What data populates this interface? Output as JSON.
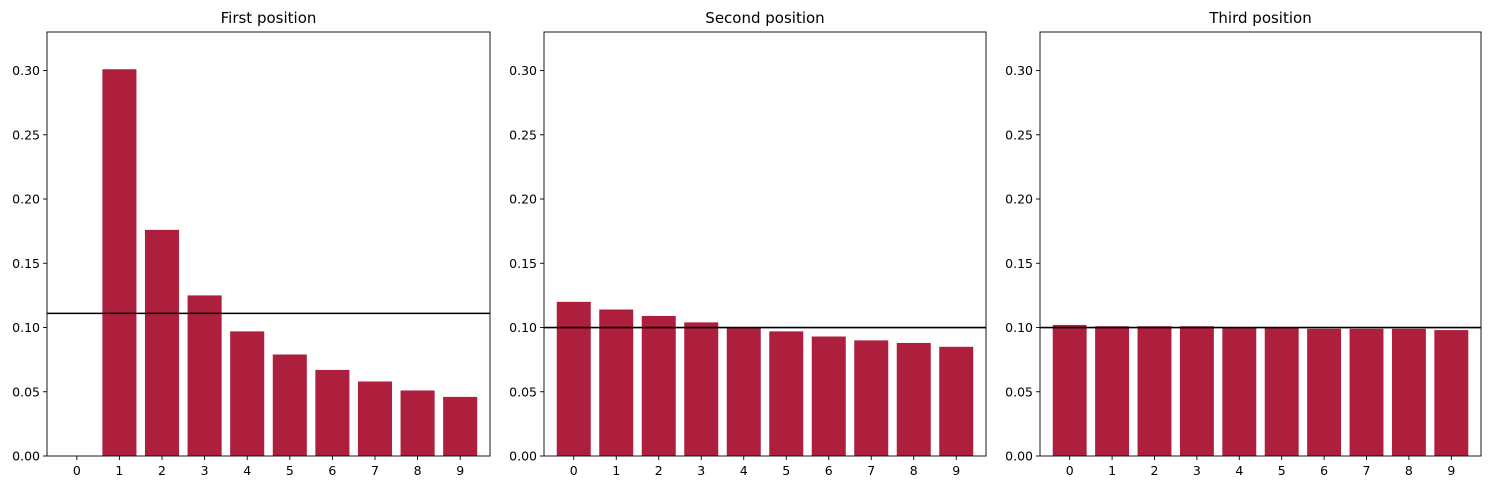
{
  "chart_data": [
    {
      "type": "bar",
      "title": "First position",
      "xlabel": "",
      "ylabel": "",
      "categories": [
        "0",
        "1",
        "2",
        "3",
        "4",
        "5",
        "6",
        "7",
        "8",
        "9"
      ],
      "values": [
        0.0,
        0.301,
        0.176,
        0.125,
        0.097,
        0.079,
        0.067,
        0.058,
        0.051,
        0.046
      ],
      "reference_line": 0.111,
      "ylim": [
        0,
        0.33
      ],
      "yticks": [
        "0.00",
        "0.05",
        "0.10",
        "0.15",
        "0.20",
        "0.25",
        "0.30"
      ],
      "grid": false,
      "bar_color": "#ae1f3e",
      "reference_line_color": "#000000"
    },
    {
      "type": "bar",
      "title": "Second position",
      "xlabel": "",
      "ylabel": "",
      "categories": [
        "0",
        "1",
        "2",
        "3",
        "4",
        "5",
        "6",
        "7",
        "8",
        "9"
      ],
      "values": [
        0.12,
        0.114,
        0.109,
        0.104,
        0.1,
        0.097,
        0.093,
        0.09,
        0.088,
        0.085
      ],
      "reference_line": 0.1,
      "ylim": [
        0,
        0.33
      ],
      "yticks": [
        "0.00",
        "0.05",
        "0.10",
        "0.15",
        "0.20",
        "0.25",
        "0.30"
      ],
      "grid": false,
      "bar_color": "#ae1f3e",
      "reference_line_color": "#000000"
    },
    {
      "type": "bar",
      "title": "Third position",
      "xlabel": "",
      "ylabel": "",
      "categories": [
        "0",
        "1",
        "2",
        "3",
        "4",
        "5",
        "6",
        "7",
        "8",
        "9"
      ],
      "values": [
        0.102,
        0.101,
        0.101,
        0.101,
        0.1,
        0.1,
        0.099,
        0.099,
        0.099,
        0.098
      ],
      "reference_line": 0.1,
      "ylim": [
        0,
        0.33
      ],
      "yticks": [
        "0.00",
        "0.05",
        "0.10",
        "0.15",
        "0.20",
        "0.25",
        "0.30"
      ],
      "grid": false,
      "bar_color": "#ae1f3e",
      "reference_line_color": "#000000"
    }
  ]
}
